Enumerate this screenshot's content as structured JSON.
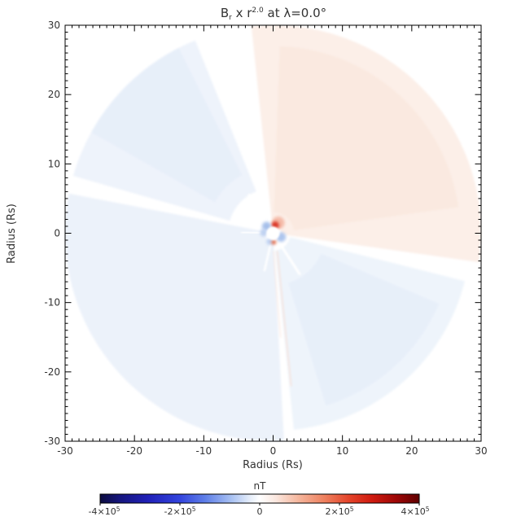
{
  "title": {
    "full": "Br x r2.0 at λ=0.0°",
    "segments": [
      {
        "t": "B",
        "type": "normal"
      },
      {
        "t": "r",
        "type": "sub"
      },
      {
        "t": " x r",
        "type": "normal"
      },
      {
        "t": "2.0",
        "type": "sup"
      },
      {
        "t": " at λ=0.0°",
        "type": "normal"
      }
    ]
  },
  "axes": {
    "xlabel": "Radius (Rs)",
    "ylabel": "Radius (Rs)",
    "xlim": [
      -30,
      30
    ],
    "ylim": [
      -30,
      30
    ],
    "major_tick_step": 10,
    "minor_tick_step": 1,
    "x_ticks": [
      -30,
      -20,
      -10,
      0,
      10,
      20,
      30
    ],
    "y_ticks": [
      -30,
      -20,
      -10,
      0,
      10,
      20,
      30
    ]
  },
  "colorbar": {
    "label": "nT",
    "range": [
      -400000,
      400000
    ],
    "tick_values": [
      -400000,
      -200000,
      0,
      200000,
      400000
    ],
    "tick_labels": [
      {
        "m": "-4×10",
        "e": "5"
      },
      {
        "m": "-2×10",
        "e": "5"
      },
      {
        "m": "0",
        "e": ""
      },
      {
        "m": "2×10",
        "e": "5"
      },
      {
        "m": "4×10",
        "e": "5"
      }
    ],
    "gradient": [
      {
        "off": 0.0,
        "color": "#0d0d3f"
      },
      {
        "off": 0.06,
        "color": "#15157c"
      },
      {
        "off": 0.15,
        "color": "#2020b8"
      },
      {
        "off": 0.25,
        "color": "#3344dd"
      },
      {
        "off": 0.33,
        "color": "#5f7fe8"
      },
      {
        "off": 0.41,
        "color": "#a7c0f2"
      },
      {
        "off": 0.47,
        "color": "#e6eefa"
      },
      {
        "off": 0.5,
        "color": "#ffffff"
      },
      {
        "off": 0.55,
        "color": "#fbe8e0"
      },
      {
        "off": 0.62,
        "color": "#f5b79e"
      },
      {
        "off": 0.7,
        "color": "#ee8260"
      },
      {
        "off": 0.78,
        "color": "#e4442a"
      },
      {
        "off": 0.85,
        "color": "#d01b10"
      },
      {
        "off": 0.93,
        "color": "#9c0606"
      },
      {
        "off": 1.0,
        "color": "#5e0000"
      }
    ]
  },
  "chart_data": {
    "type": "heatmap",
    "title": "Br x r2.0 at λ=0.0°",
    "xlabel": "Radius (Rs)",
    "ylabel": "Radius (Rs)",
    "units": "nT",
    "xlim": [
      -30,
      30
    ],
    "ylim": [
      -30,
      30
    ],
    "value_range": [
      -400000,
      400000
    ],
    "disk_radius_rs": 30,
    "inner_hole_radius_rs": 0.95,
    "summary": "Polar map of radial magnetic field scaled by r^2 at heliographic latitude 0: weak positive (pale red) sector over the upper-right azimuths, weak negative (pale blue) sectors over the left/bottom and lower-right, thin white sector boundaries spiraling from a strong bipolar source region at the origin; field shown out to 30 solar radii.",
    "sectors": [
      {
        "name": "positive-upper-right",
        "a0": -8,
        "a1": 96,
        "r0": 1.2,
        "r1": 30,
        "color": "#fcefe8"
      },
      {
        "name": "positive-inner-band",
        "a0": 8,
        "a1": 88,
        "r0": 3,
        "r1": 27,
        "color": "#fae9e0"
      },
      {
        "name": "negative-upper-left-outer",
        "a0": 112,
        "a1": 164,
        "r0": 6.5,
        "r1": 30,
        "color": "#eef3fb"
      },
      {
        "name": "negative-upper-left-core",
        "a0": 117,
        "a1": 152,
        "r0": 9.5,
        "r1": 30,
        "color": "#e7eff9"
      },
      {
        "name": "negative-left-bottom",
        "a0": 169,
        "a1": 273,
        "r0": 1.2,
        "r1": 30,
        "color": "#ecf2fa"
      },
      {
        "name": "negative-lower-right-outer",
        "a0": 276,
        "a1": 347,
        "r0": 2.5,
        "r1": 28.5,
        "color": "#eef4fb"
      },
      {
        "name": "negative-lower-right-core",
        "a0": 287,
        "a1": 337,
        "r0": 7.5,
        "r1": 26,
        "color": "#e7eff9"
      }
    ],
    "streaks": [
      {
        "name": "spiral-streak-1",
        "pts": [
          [
            0.6,
            -2.6
          ],
          [
            1.4,
            -10
          ],
          [
            2.6,
            -22
          ]
        ],
        "w": 1.4,
        "color": "#f7ddd2"
      },
      {
        "name": "spiral-streak-2",
        "pts": [
          [
            0.1,
            -2.6
          ],
          [
            0.5,
            -9
          ],
          [
            1.1,
            -15
          ]
        ],
        "w": 1.0,
        "color": "#f9e4da"
      }
    ],
    "rays": [
      {
        "az": 122,
        "r0": 1.0,
        "r1": 6.5,
        "w": 3
      },
      {
        "az": 178,
        "r0": 1.0,
        "r1": 4.5,
        "w": 2.5
      },
      {
        "az": 257,
        "r0": 1.1,
        "r1": 5.5,
        "w": 2.5
      },
      {
        "az": 303,
        "r0": 1.0,
        "r1": 7.0,
        "w": 3
      }
    ],
    "center_spots": [
      {
        "x": 0.75,
        "y": 1.5,
        "r": 0.9,
        "color": "#f2a58e",
        "opacity": 0.7
      },
      {
        "x": 0.3,
        "y": 1.15,
        "r": 0.55,
        "color": "#d93020",
        "opacity": 0.95
      },
      {
        "x": -0.95,
        "y": 1.0,
        "r": 0.65,
        "color": "#9db9e8",
        "opacity": 0.9
      },
      {
        "x": -1.35,
        "y": 0.1,
        "r": 0.55,
        "color": "#b9cdf0",
        "opacity": 0.9
      },
      {
        "x": 1.15,
        "y": -0.55,
        "r": 0.7,
        "color": "#a6c0ec",
        "opacity": 0.9
      },
      {
        "x": -0.45,
        "y": -1.2,
        "r": 0.5,
        "color": "#b4caf0",
        "opacity": 0.85
      },
      {
        "x": 0.1,
        "y": -1.3,
        "r": 0.35,
        "color": "#e4643c",
        "opacity": 0.9
      }
    ]
  }
}
